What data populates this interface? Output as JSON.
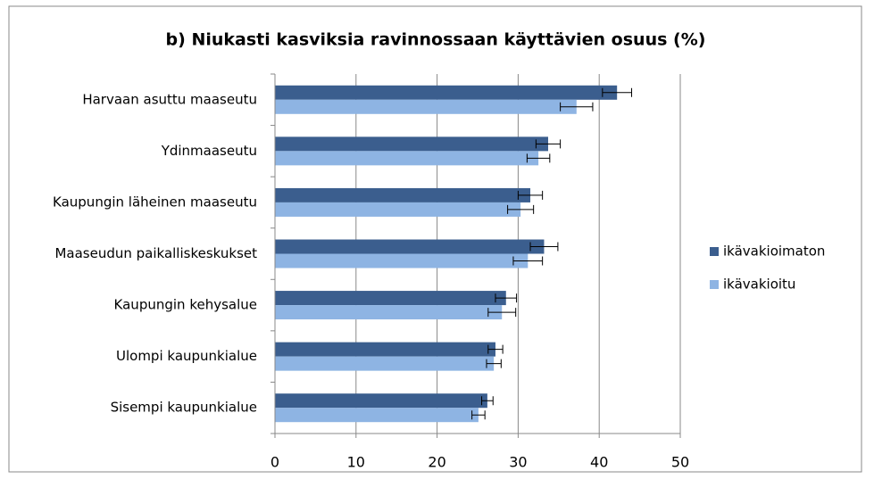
{
  "chart_data": {
    "type": "bar",
    "orientation": "horizontal",
    "title": "b) Niukasti kasviksia ravinnossaan käyttävien osuus (%)",
    "categories": [
      "Harvaan asuttu maaseutu",
      "Ydinmaaseutu",
      "Kaupungin läheinen maaseutu",
      "Maaseudun paikalliskeskukset",
      "Kaupungin kehysalue",
      "Ulompi kaupunkialue",
      "Sisempi kaupunkialue"
    ],
    "series": [
      {
        "name": "ikävakioimaton",
        "color": "#3b5e8e",
        "values": [
          42.2,
          33.7,
          31.5,
          33.2,
          28.5,
          27.2,
          26.2
        ],
        "errors": [
          1.8,
          1.5,
          1.5,
          1.7,
          1.3,
          0.9,
          0.7
        ]
      },
      {
        "name": "ikävakioitu",
        "color": "#8eb4e3",
        "values": [
          37.2,
          32.5,
          30.3,
          31.2,
          28.0,
          27.0,
          25.1
        ],
        "errors": [
          2.0,
          1.4,
          1.6,
          1.8,
          1.7,
          0.9,
          0.8
        ]
      }
    ],
    "xlim": [
      0,
      50
    ],
    "xticks": [
      0,
      10,
      20,
      30,
      40,
      50
    ],
    "grid": true,
    "legend": "right"
  }
}
